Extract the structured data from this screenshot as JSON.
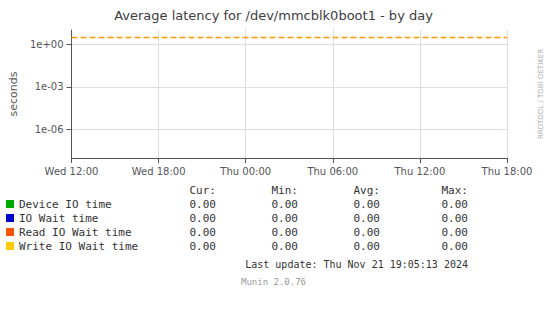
{
  "chart_data": {
    "type": "line",
    "title": "Average latency for /dev/mmcblk0boot1 - by day",
    "y_label": "seconds",
    "categories": [
      "Wed 12:00",
      "Wed 18:00",
      "Thu 00:00",
      "Thu 06:00",
      "Thu 12:00",
      "Thu 18:00"
    ],
    "log": "y",
    "ylim": [
      1e-08,
      10
    ],
    "yticks": [
      {
        "value": 1,
        "label": "1e+00"
      },
      {
        "value": 0.001,
        "label": "1e-03"
      },
      {
        "value": 1e-06,
        "label": "1e-06"
      }
    ],
    "grid": true,
    "hline": {
      "y": 3.0,
      "color": "#ff9900",
      "line_style": "dashed"
    },
    "stats_header": [
      "Cur:",
      "Min:",
      "Avg:",
      "Max:"
    ],
    "series": [
      {
        "name": "Device IO time",
        "color": "#00aa00",
        "stats": [
          0,
          0,
          0,
          0
        ],
        "stats_labels": [
          "0.00",
          "0.00",
          "0.00",
          "0.00"
        ]
      },
      {
        "name": "IO Wait time",
        "color": "#0000cc",
        "stats": [
          0,
          0,
          0,
          0
        ],
        "stats_labels": [
          "0.00",
          "0.00",
          "0.00",
          "0.00"
        ]
      },
      {
        "name": "Read IO Wait time",
        "color": "#ff5500",
        "stats": [
          0,
          0,
          0,
          0
        ],
        "stats_labels": [
          "0.00",
          "0.00",
          "0.00",
          "0.00"
        ]
      },
      {
        "name": "Write IO Wait time",
        "color": "#ffcc00",
        "stats": [
          0,
          0,
          0,
          0
        ],
        "stats_labels": [
          "0.00",
          "0.00",
          "0.00",
          "0.00"
        ]
      }
    ],
    "side_text": "RRDTOOL / TOBI OETIKER",
    "footer": "Last update: Thu Nov 21 19:05:13 2024",
    "version_text": "Munin 2.0.76"
  }
}
